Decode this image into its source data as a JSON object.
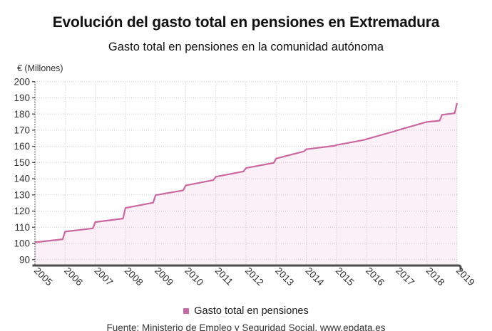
{
  "chart_data": {
    "type": "area",
    "title": "Evolución del gasto total en pensiones en Extremadura",
    "subtitle": "Gasto total en pensiones en la comunidad autónoma",
    "ylabel": "€ (Millones)",
    "legend": "Gasto total en pensiones",
    "legend_position": "bottom",
    "grid": true,
    "x_range": [
      2005,
      2019
    ],
    "y_range": [
      90,
      200
    ],
    "x_ticks": [
      "2005",
      "2006",
      "2007",
      "2008",
      "2009",
      "2010",
      "2011",
      "2012",
      "2013",
      "2014",
      "2015",
      "2016",
      "2017",
      "2018",
      "2019"
    ],
    "y_ticks": [
      90,
      100,
      110,
      120,
      130,
      140,
      150,
      160,
      170,
      180,
      190,
      200
    ],
    "series": [
      {
        "name": "Gasto total en pensiones",
        "points": [
          [
            2005.0,
            100.7
          ],
          [
            2005.92,
            102.6
          ],
          [
            2006.0,
            107.3
          ],
          [
            2006.92,
            109.3
          ],
          [
            2007.0,
            113.2
          ],
          [
            2007.92,
            115.4
          ],
          [
            2008.0,
            121.9
          ],
          [
            2008.92,
            125.2
          ],
          [
            2009.0,
            129.8
          ],
          [
            2009.92,
            132.8
          ],
          [
            2010.0,
            135.8
          ],
          [
            2010.92,
            139.2
          ],
          [
            2011.0,
            141.2
          ],
          [
            2011.92,
            144.5
          ],
          [
            2012.0,
            146.6
          ],
          [
            2012.92,
            149.8
          ],
          [
            2013.0,
            152.5
          ],
          [
            2013.92,
            156.9
          ],
          [
            2014.0,
            158.2
          ],
          [
            2014.92,
            160.3
          ],
          [
            2015.0,
            160.8
          ],
          [
            2015.92,
            164.0
          ],
          [
            2016.0,
            164.5
          ],
          [
            2016.92,
            169.3
          ],
          [
            2017.0,
            169.8
          ],
          [
            2017.92,
            174.7
          ],
          [
            2018.0,
            175.1
          ],
          [
            2018.42,
            175.9
          ],
          [
            2018.5,
            179.5
          ],
          [
            2018.92,
            180.5
          ],
          [
            2019.0,
            186.8
          ]
        ]
      }
    ],
    "colors": {
      "line": "#cb67a0",
      "fill": "rgba(203,104,160,0.10)",
      "legend_swatch": "#c56ba6",
      "grid": "#cccccc",
      "axis": "#4d4d4d",
      "tick_text": "#333333"
    }
  },
  "footer": {
    "source": "Fuente: Ministerio de Empleo y Seguridad Social, www.epdata.es"
  }
}
